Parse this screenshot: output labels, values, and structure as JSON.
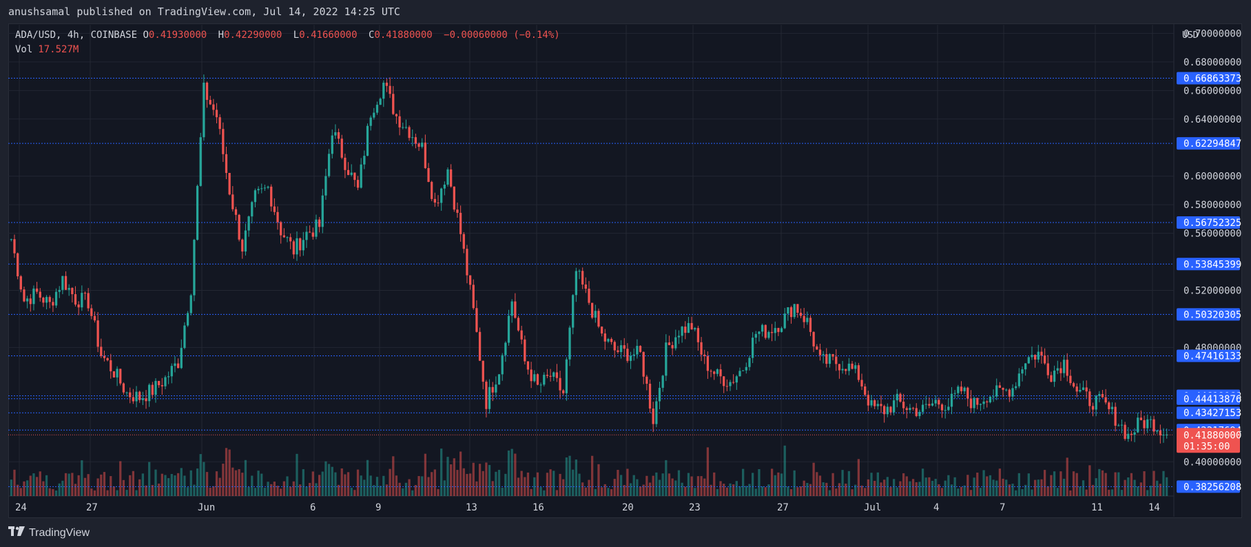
{
  "header": {
    "text": "anushsamal published on TradingView.com, Jul 14, 2022 14:25 UTC"
  },
  "legend": {
    "symbol": "ADA/USD, 4h, COINBASE",
    "o_label": "O",
    "o": "0.41930000",
    "h_label": "H",
    "h": "0.42290000",
    "l_label": "L",
    "l": "0.41660000",
    "c_label": "C",
    "c": "0.41880000",
    "change": "−0.00060000 (−0.14%)",
    "vol_label": "Vol",
    "vol": "17.527M"
  },
  "footer": {
    "brand": "TradingView",
    "logo": "tradingview-logo-icon"
  },
  "colors": {
    "up": "#26a69a",
    "down": "#ef5350",
    "level_line": "#2962ff",
    "price_tag": "#2962ff",
    "last_price_tag": "#ef5350"
  },
  "chart_data": {
    "type": "candlestick",
    "title": "ADA/USD, 4h, COINBASE",
    "ylabel": "USD",
    "ylim": [
      0.376,
      0.706
    ],
    "y_ticks": [
      "0.70000000",
      "0.68000000",
      "0.66000000",
      "0.64000000",
      "0.60000000",
      "0.58000000",
      "0.56000000",
      "0.52000000",
      "0.48000000",
      "0.40000000"
    ],
    "x_ticks": [
      "24",
      "27",
      "Jun",
      "6",
      "9",
      "13",
      "16",
      "20",
      "23",
      "27",
      "Jul",
      "4",
      "7",
      "11",
      "14"
    ],
    "grid": true,
    "horizontal_levels": [
      "0.66863373",
      "0.62294847",
      "0.56752325",
      "0.53845399",
      "0.50320305",
      "0.47416133",
      "0.44619068",
      "0.44413876",
      "0.43427153",
      "0.42217694",
      "0.38256208"
    ],
    "last_price": {
      "value": "0.41880000",
      "countdown": "01:35:00"
    },
    "anchors": [
      0.556,
      0.513,
      0.518,
      0.51,
      0.528,
      0.514,
      0.512,
      0.475,
      0.463,
      0.448,
      0.445,
      0.45,
      0.458,
      0.47,
      0.522,
      0.66,
      0.642,
      0.59,
      0.55,
      0.585,
      0.592,
      0.562,
      0.548,
      0.56,
      0.565,
      0.633,
      0.61,
      0.59,
      0.645,
      0.665,
      0.642,
      0.632,
      0.62,
      0.58,
      0.605,
      0.56,
      0.505,
      0.442,
      0.465,
      0.513,
      0.47,
      0.452,
      0.46,
      0.448,
      0.533,
      0.512,
      0.488,
      0.478,
      0.476,
      0.475,
      0.43,
      0.478,
      0.492,
      0.495,
      0.47,
      0.46,
      0.456,
      0.466,
      0.49,
      0.492,
      0.498,
      0.51,
      0.498,
      0.47,
      0.47,
      0.468,
      0.46,
      0.438,
      0.436,
      0.442,
      0.437,
      0.436,
      0.442,
      0.44,
      0.45,
      0.44,
      0.447,
      0.448,
      0.452,
      0.472,
      0.476,
      0.462,
      0.47,
      0.45,
      0.443,
      0.441,
      0.431,
      0.418,
      0.428,
      0.427,
      0.419
    ]
  }
}
